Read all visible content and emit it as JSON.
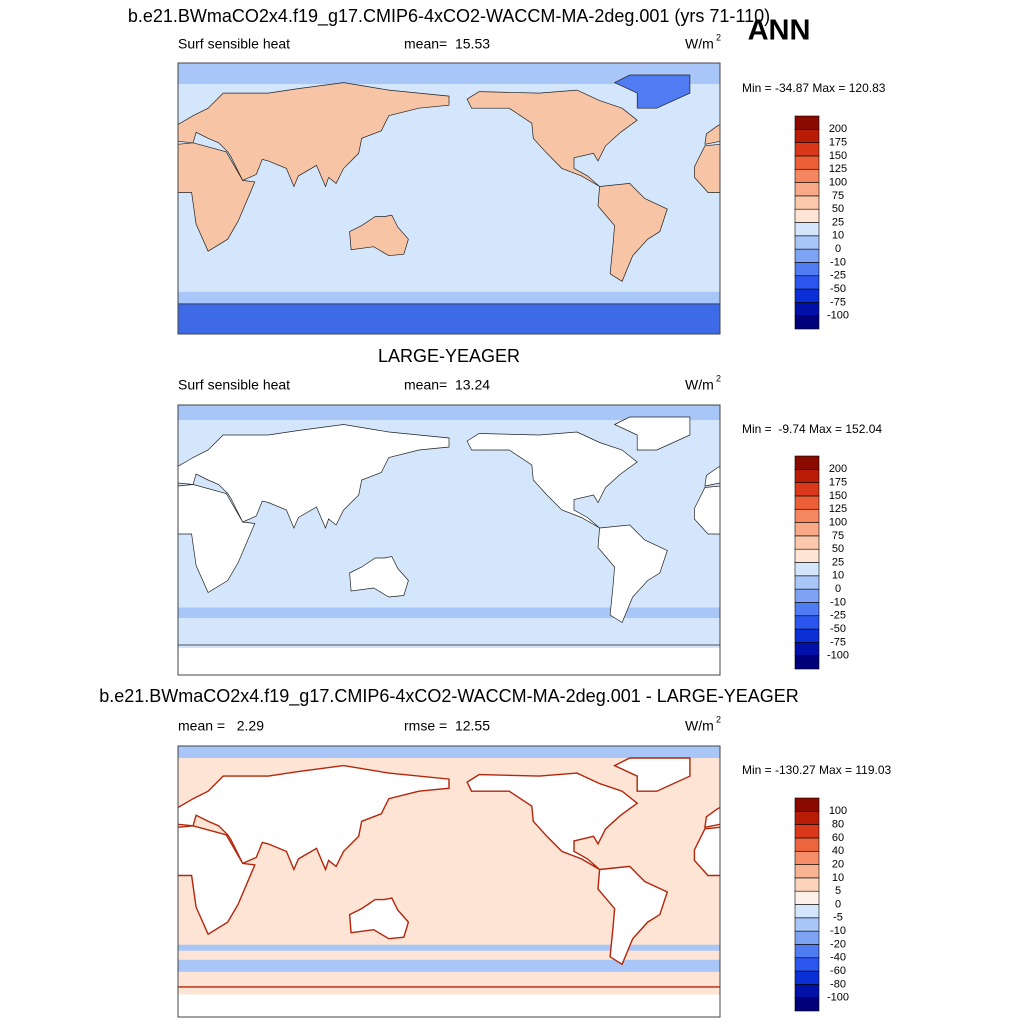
{
  "header": {
    "title": "ANN"
  },
  "panels": [
    {
      "title": "b.e21.BWmaCO2x4.f19_g17.CMIP6-4xCO2-WACCM-MA-2deg.001 (yrs 71-110)",
      "left": "Surf sensible heat",
      "center": "mean=  15.53",
      "units": "W/m",
      "units_power": "2",
      "minmax": "Min = -34.87 Max = 120.83",
      "colorbar": {
        "levels": [
          -100,
          -75,
          -50,
          -25,
          -10,
          0,
          10,
          25,
          50,
          75,
          100,
          125,
          150,
          175,
          200
        ],
        "colors": [
          "#00007a",
          "#0010a8",
          "#0a2fd6",
          "#2a55ee",
          "#4f7cf2",
          "#7ea3f5",
          "#a9c6f8",
          "#d4e6fb",
          "#fde4d4",
          "#fbc8ab",
          "#f8a987",
          "#f48660",
          "#ec5f37",
          "#d9391a",
          "#b81c06",
          "#8a0a00"
        ]
      }
    },
    {
      "title": "LARGE-YEAGER",
      "left": "Surf sensible heat",
      "center": "mean=  13.24",
      "units": "W/m",
      "units_power": "2",
      "minmax": "Min =  -9.74 Max = 152.04",
      "colorbar": {
        "levels": [
          -100,
          -75,
          -50,
          -25,
          -10,
          0,
          10,
          25,
          50,
          75,
          100,
          125,
          150,
          175,
          200
        ],
        "colors": [
          "#00007a",
          "#0010a8",
          "#0a2fd6",
          "#2a55ee",
          "#4f7cf2",
          "#7ea3f5",
          "#a9c6f8",
          "#d4e6fb",
          "#fde4d4",
          "#fbc8ab",
          "#f8a987",
          "#f48660",
          "#ec5f37",
          "#d9391a",
          "#b81c06",
          "#8a0a00"
        ]
      }
    },
    {
      "title": "b.e21.BWmaCO2x4.f19_g17.CMIP6-4xCO2-WACCM-MA-2deg.001 - LARGE-YEAGER",
      "left": "mean =   2.29",
      "center": "rmse =  12.55",
      "units": "W/m",
      "units_power": "2",
      "minmax": "Min = -130.27 Max = 119.03",
      "colorbar": {
        "levels": [
          -100,
          -80,
          -60,
          -40,
          -20,
          -10,
          -5,
          0,
          5,
          10,
          20,
          40,
          60,
          80,
          100
        ],
        "colors": [
          "#00007a",
          "#0010a8",
          "#0a2fd6",
          "#2a55ee",
          "#4f7cf2",
          "#7ea3f5",
          "#a9c6f8",
          "#d4e6fb",
          "#fdf0e8",
          "#fbd3bb",
          "#f8b393",
          "#f48d68",
          "#ec653e",
          "#d9391a",
          "#b81c06",
          "#8a0a00"
        ]
      }
    }
  ]
}
